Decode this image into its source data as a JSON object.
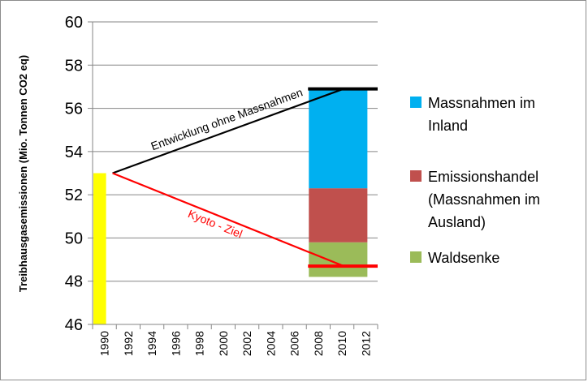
{
  "chart_data": {
    "type": "bar",
    "title": "",
    "ylabel": "Treibhausgasemissionen (Mio. Tonnen CO2 eq)",
    "xlabel": "",
    "ylim": [
      46,
      60
    ],
    "yticks": [
      46,
      48,
      50,
      52,
      54,
      56,
      58,
      60
    ],
    "xticks": [
      "1990",
      "1992",
      "1994",
      "1996",
      "1998",
      "2000",
      "2002",
      "2004",
      "2006",
      "2008",
      "2010",
      "2012"
    ],
    "grid": "horizontal",
    "legend_position": "right",
    "baseline_bar": {
      "category": "1990",
      "value": 53.0,
      "color": "#ffff00"
    },
    "stacked_bar": {
      "x_from": "2008",
      "x_to": "2012",
      "segments": [
        {
          "name": "Waldsenke",
          "from": 48.2,
          "to": 49.8,
          "color": "#9bbb59"
        },
        {
          "name": "Emissionshandel (Massnahmen im Ausland)",
          "from": 49.8,
          "to": 52.3,
          "color": "#c0504d"
        },
        {
          "name": "Massnahmen im Inland",
          "from": 52.3,
          "to": 56.9,
          "color": "#00b0f0"
        }
      ]
    },
    "lines": [
      {
        "name": "Entwicklung ohne Massnahmen",
        "color": "#000000",
        "points": [
          [
            "1990",
            53.0
          ],
          [
            "2010",
            56.9
          ]
        ]
      },
      {
        "name": "Kyoto - Ziel",
        "color": "#ff0000",
        "points": [
          [
            "1990",
            53.0
          ],
          [
            "2010",
            48.7
          ]
        ]
      }
    ],
    "reference_lines": [
      {
        "value": 56.9,
        "x_from": "2008",
        "x_to": "2012",
        "color": "#000000"
      },
      {
        "value": 48.7,
        "x_from": "2008",
        "x_to": "2012",
        "color": "#ff0000"
      }
    ],
    "annotations": [
      {
        "text": "Entwicklung ohne Massnahmen",
        "color": "#000000"
      },
      {
        "text": "Kyoto - Ziel",
        "color": "#ff0000"
      }
    ],
    "legend": [
      {
        "lines": [
          "Massnahmen im",
          "Inland"
        ],
        "color": "#00b0f0"
      },
      {
        "lines": [
          "Emissionshandel",
          "(Massnahmen im",
          "Ausland)"
        ],
        "color": "#c0504d"
      },
      {
        "lines": [
          "Waldsenke"
        ],
        "color": "#9bbb59"
      }
    ]
  }
}
